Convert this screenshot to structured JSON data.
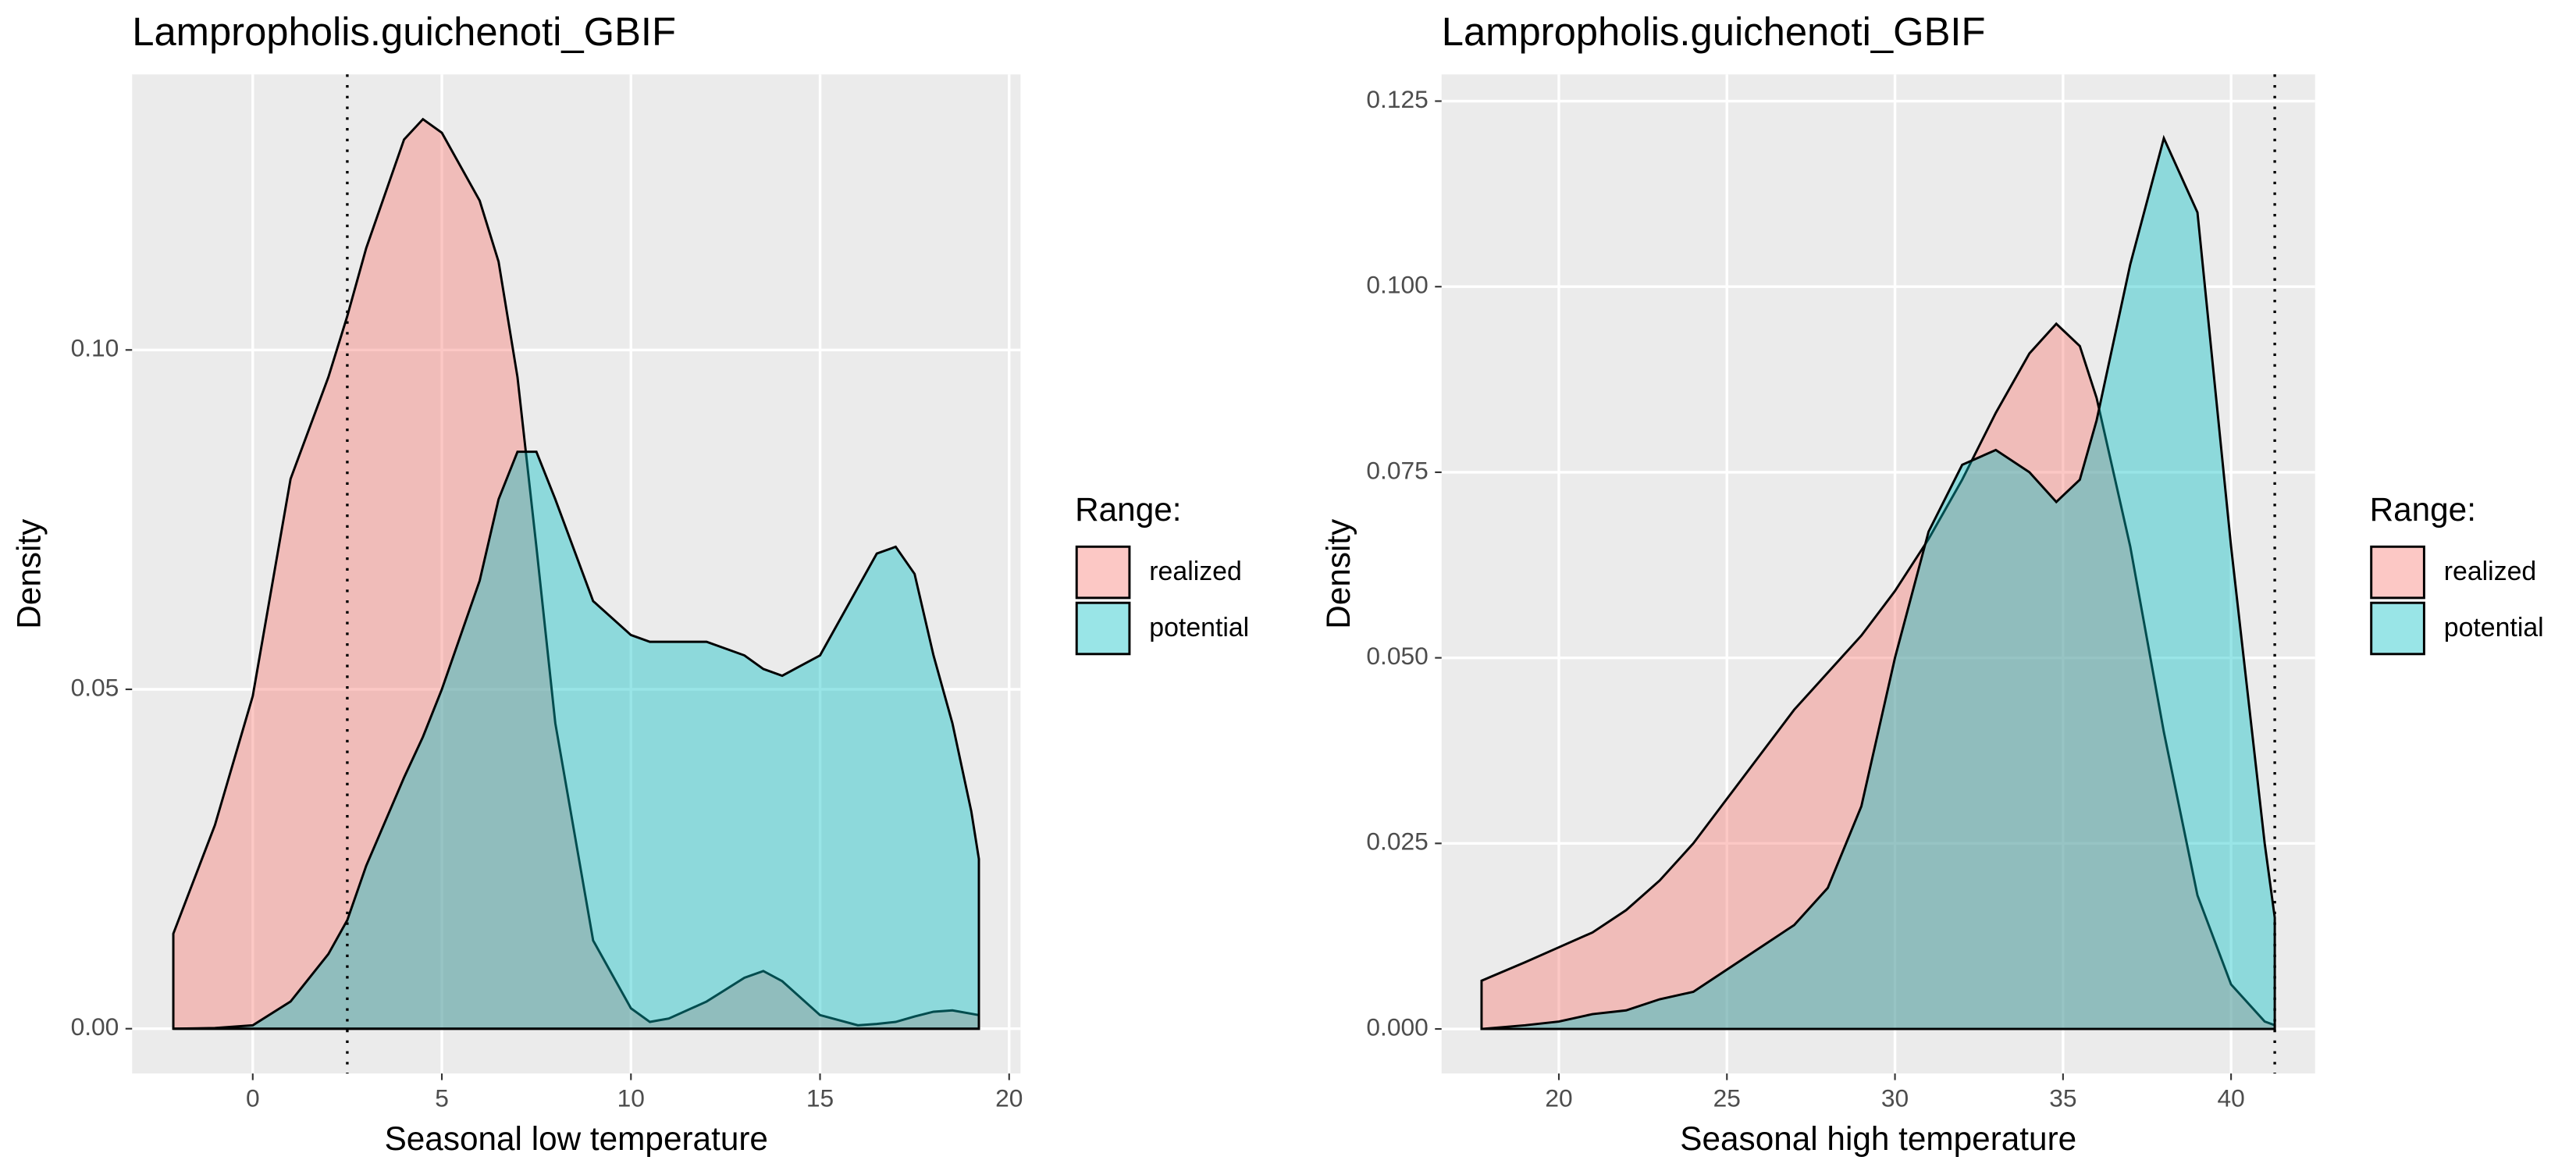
{
  "chart_data": [
    {
      "type": "area",
      "title": "Lampropholis.guichenoti_GBIF",
      "x_label": "Seasonal low temperature",
      "y_label": "Density",
      "legend_title": "Range:",
      "x": [
        -2.1,
        -1,
        0,
        1,
        2,
        2.5,
        3,
        4,
        4.5,
        5,
        6,
        6.5,
        7,
        7.5,
        8,
        9,
        10,
        10.5,
        11,
        12,
        13,
        13.5,
        14,
        15,
        16,
        16.5,
        17,
        17.5,
        18,
        18.5,
        19,
        19.2
      ],
      "series": [
        {
          "name": "realized",
          "color": "#F8766D",
          "values": [
            0.014,
            0.03,
            0.049,
            0.081,
            0.096,
            0.105,
            0.115,
            0.131,
            0.134,
            0.132,
            0.122,
            0.113,
            0.096,
            0.071,
            0.045,
            0.013,
            0.003,
            0.001,
            0.0015,
            0.004,
            0.0075,
            0.0085,
            0.007,
            0.002,
            0.0005,
            0.0007,
            0.001,
            0.0018,
            0.0025,
            0.0027,
            0.0022,
            0.002
          ]
        },
        {
          "name": "potential",
          "color": "#00BFC4",
          "values": [
            0,
            0.0001,
            0.0005,
            0.004,
            0.011,
            0.016,
            0.024,
            0.037,
            0.043,
            0.05,
            0.066,
            0.078,
            0.085,
            0.085,
            0.078,
            0.063,
            0.058,
            0.057,
            0.057,
            0.057,
            0.055,
            0.053,
            0.052,
            0.055,
            0.065,
            0.07,
            0.071,
            0.067,
            0.055,
            0.045,
            0.032,
            0.025
          ]
        }
      ],
      "xlim": [
        -3.19,
        20.3
      ],
      "ylim": [
        -0.0066,
        0.1406
      ],
      "xticks": [
        0,
        5,
        10,
        15,
        20
      ],
      "yticks": [
        {
          "value": 0,
          "label": "0.00"
        },
        0.05,
        {
          "value": 0.1,
          "label": "0.10"
        }
      ],
      "vline": 2.5,
      "grid": true
    },
    {
      "type": "area",
      "title": "Lampropholis.guichenoti_GBIF",
      "x_label": "Seasonal high temperature",
      "y_label": "Density",
      "legend_title": "Range:",
      "x": [
        17.7,
        19,
        20,
        21,
        22,
        23,
        24,
        25,
        26,
        27,
        28,
        29,
        30,
        31,
        32,
        33,
        34,
        34.8,
        35.5,
        36,
        37,
        38,
        39,
        40,
        41,
        41.3
      ],
      "series": [
        {
          "name": "realized",
          "color": "#F8766D",
          "values": [
            0.0065,
            0.009,
            0.011,
            0.013,
            0.016,
            0.02,
            0.025,
            0.031,
            0.037,
            0.043,
            0.048,
            0.053,
            0.059,
            0.066,
            0.074,
            0.083,
            0.091,
            0.095,
            0.092,
            0.085,
            0.065,
            0.04,
            0.018,
            0.006,
            0.001,
            0.0005
          ]
        },
        {
          "name": "potential",
          "color": "#00BFC4",
          "values": [
            0,
            0.0005,
            0.001,
            0.002,
            0.0025,
            0.004,
            0.005,
            0.008,
            0.011,
            0.014,
            0.019,
            0.03,
            0.05,
            0.067,
            0.076,
            0.078,
            0.075,
            0.071,
            0.074,
            0.082,
            0.103,
            0.12,
            0.11,
            0.065,
            0.025,
            0.015
          ]
        }
      ],
      "xlim": [
        16.51,
        42.5
      ],
      "ylim": [
        -0.006,
        0.1286
      ],
      "xticks": [
        20,
        25,
        30,
        35,
        40
      ],
      "yticks": [
        {
          "value": 0,
          "label": "0.000"
        },
        {
          "value": 0.025,
          "label": "0.025"
        },
        {
          "value": 0.05,
          "label": "0.050"
        },
        {
          "value": 0.075,
          "label": "0.075"
        },
        {
          "value": 0.1,
          "label": "0.100"
        },
        {
          "value": 0.125,
          "label": "0.125"
        }
      ],
      "vline": 41.3,
      "grid": true
    }
  ]
}
